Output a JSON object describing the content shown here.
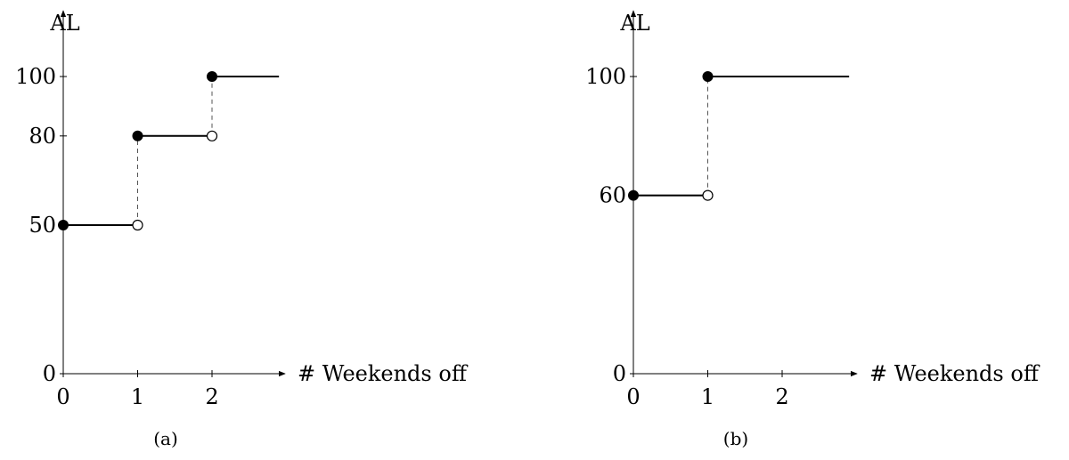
{
  "chart_data": [
    {
      "type": "step",
      "caption": "(a)",
      "ylabel": "AL",
      "xlabel": "# Weekends off",
      "xlim": [
        0,
        3
      ],
      "ylim": [
        0,
        105
      ],
      "xticks": [
        0,
        1,
        2
      ],
      "yticks": [
        0,
        50,
        80,
        100
      ],
      "steps": [
        {
          "x_start": 0,
          "x_end": 1,
          "y": 50
        },
        {
          "x_start": 1,
          "x_end": 2,
          "y": 80
        },
        {
          "x_start": 2,
          "x_end": 2.9,
          "y": 100
        }
      ],
      "filled_points": [
        {
          "x": 0,
          "y": 50
        },
        {
          "x": 1,
          "y": 80
        },
        {
          "x": 2,
          "y": 100
        }
      ],
      "open_points": [
        {
          "x": 1,
          "y": 50
        },
        {
          "x": 2,
          "y": 80
        }
      ],
      "dashed_jumps": [
        {
          "x": 1,
          "y_from": 50,
          "y_to": 80
        },
        {
          "x": 2,
          "y_from": 80,
          "y_to": 100
        }
      ],
      "grid": false
    },
    {
      "type": "step",
      "caption": "(b)",
      "ylabel": "AL",
      "xlabel": "# Weekends off",
      "xlim": [
        0,
        3
      ],
      "ylim": [
        0,
        105
      ],
      "xticks": [
        0,
        1,
        2
      ],
      "yticks": [
        0,
        60,
        100
      ],
      "steps": [
        {
          "x_start": 0,
          "x_end": 1,
          "y": 60
        },
        {
          "x_start": 1,
          "x_end": 2.9,
          "y": 100
        }
      ],
      "filled_points": [
        {
          "x": 0,
          "y": 60
        },
        {
          "x": 1,
          "y": 100
        }
      ],
      "open_points": [
        {
          "x": 1,
          "y": 60
        }
      ],
      "dashed_jumps": [
        {
          "x": 1,
          "y_from": 60,
          "y_to": 100
        }
      ],
      "grid": false
    }
  ]
}
